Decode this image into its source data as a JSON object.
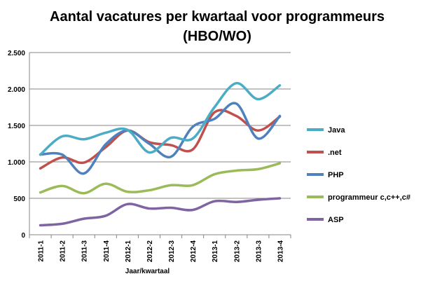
{
  "chart_data": {
    "type": "line",
    "title_line1": "Aantal vacatures per kwartaal voor programmeurs",
    "title_line2": "(HBO/WO)",
    "xlabel": "Jaar/kwartaal",
    "ylabel": "",
    "ylim": [
      0,
      2500
    ],
    "yticks": [
      0,
      500,
      1000,
      1500,
      2000,
      2500
    ],
    "ytick_labels": [
      "0",
      "500",
      "1.000",
      "1.500",
      "2.000",
      "2.500"
    ],
    "categories": [
      "2011-1",
      "2011-2",
      "2011-3",
      "2011-4",
      "2012-1",
      "2012-2",
      "2012-3",
      "2012-4",
      "2013-1",
      "2013-2",
      "2013-3",
      "2013-4"
    ],
    "grid": true,
    "legend_position": "right",
    "series": [
      {
        "name": "Java",
        "color": "#4bacc6",
        "values": [
          1100,
          1350,
          1310,
          1400,
          1440,
          1130,
          1330,
          1320,
          1750,
          2080,
          1860,
          2050
        ]
      },
      {
        "name": ".net",
        "color": "#c0504d",
        "values": [
          910,
          1060,
          990,
          1200,
          1430,
          1270,
          1230,
          1170,
          1680,
          1630,
          1430,
          1620
        ]
      },
      {
        "name": "PHP",
        "color": "#4f81bd",
        "values": [
          1100,
          1100,
          840,
          1240,
          1430,
          1250,
          1070,
          1480,
          1590,
          1800,
          1320,
          1630
        ]
      },
      {
        "name": "programmeur c,c++,c#",
        "color": "#9bbb59",
        "values": [
          580,
          670,
          570,
          700,
          590,
          610,
          680,
          680,
          830,
          880,
          900,
          980
        ]
      },
      {
        "name": "ASP",
        "color": "#8064a2",
        "values": [
          130,
          150,
          220,
          260,
          420,
          360,
          370,
          340,
          460,
          450,
          480,
          500
        ]
      }
    ]
  }
}
